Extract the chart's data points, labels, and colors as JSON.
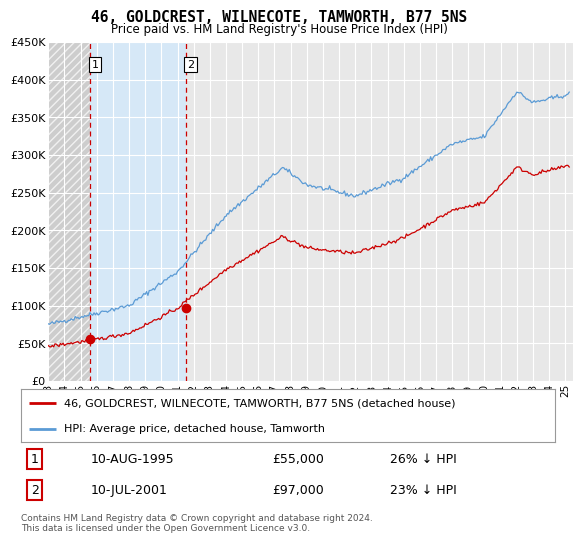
{
  "title": "46, GOLDCREST, WILNECOTE, TAMWORTH, B77 5NS",
  "subtitle": "Price paid vs. HM Land Registry's House Price Index (HPI)",
  "ylim": [
    0,
    450000
  ],
  "xlim_start": 1993.0,
  "xlim_end": 2025.5,
  "hpi_color": "#5b9bd5",
  "price_color": "#cc0000",
  "background_color": "#e8e8e8",
  "grid_color": "#ffffff",
  "highlight_color": "#d6e8f7",
  "legend_label_red": "46, GOLDCREST, WILNECOTE, TAMWORTH, B77 5NS (detached house)",
  "legend_label_blue": "HPI: Average price, detached house, Tamworth",
  "transaction1_date": "10-AUG-1995",
  "transaction1_price": "£55,000",
  "transaction1_hpi": "26% ↓ HPI",
  "transaction1_year": 1995.6,
  "transaction1_value": 55000,
  "transaction2_date": "10-JUL-2001",
  "transaction2_price": "£97,000",
  "transaction2_hpi": "23% ↓ HPI",
  "transaction2_year": 2001.52,
  "transaction2_value": 97000,
  "footer": "Contains HM Land Registry data © Crown copyright and database right 2024.\nThis data is licensed under the Open Government Licence v3.0.",
  "xticks": [
    1993,
    1994,
    1995,
    1996,
    1997,
    1998,
    1999,
    2000,
    2001,
    2002,
    2003,
    2004,
    2005,
    2006,
    2007,
    2008,
    2009,
    2010,
    2011,
    2012,
    2013,
    2014,
    2015,
    2016,
    2017,
    2018,
    2019,
    2020,
    2021,
    2022,
    2023,
    2024,
    2025
  ],
  "yticks": [
    0,
    50000,
    100000,
    150000,
    200000,
    250000,
    300000,
    350000,
    400000,
    450000
  ],
  "ytick_labels": [
    "£0",
    "£50K",
    "£100K",
    "£150K",
    "£200K",
    "£250K",
    "£300K",
    "£350K",
    "£400K",
    "£450K"
  ]
}
